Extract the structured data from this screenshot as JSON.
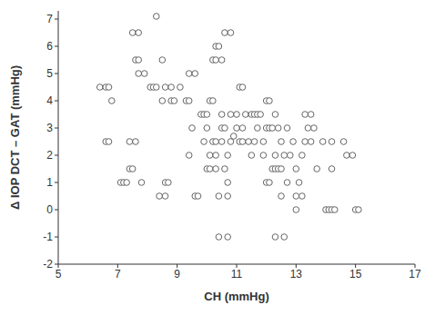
{
  "chart_data": {
    "type": "scatter",
    "x_label": "CH (mmHg)",
    "y_label": "Δ IOP DCT – GAT (mmHg)",
    "xlim": [
      5,
      17
    ],
    "xticks": [
      5,
      7,
      9,
      11,
      13,
      15,
      17
    ],
    "ylim": [
      -2,
      7.3
    ],
    "yticks": [
      -2,
      -1,
      0,
      1,
      2,
      3,
      4,
      5,
      6,
      7
    ],
    "grid": false,
    "marker": "circle",
    "color": "#555555",
    "x": [
      6.4,
      6.6,
      6.7,
      6.6,
      6.7,
      6.8,
      7.1,
      7.2,
      7.3,
      7.4,
      7.4,
      7.5,
      7.5,
      7.6,
      7.6,
      7.7,
      7.7,
      7.7,
      7.8,
      7.9,
      8.1,
      8.2,
      8.3,
      8.3,
      8.4,
      8.5,
      8.5,
      8.6,
      8.6,
      8.6,
      8.7,
      8.8,
      8.8,
      8.9,
      9.1,
      9.3,
      9.4,
      9.4,
      9.4,
      9.5,
      9.6,
      9.6,
      9.7,
      9.8,
      9.9,
      9.9,
      10,
      10,
      10,
      10.1,
      10.1,
      10.1,
      10.2,
      10.2,
      10.2,
      10.3,
      10.3,
      10.3,
      10.3,
      10.3,
      10.4,
      10.4,
      10.4,
      10.5,
      10.5,
      10.5,
      10.5,
      10.6,
      10.6,
      10.6,
      10.7,
      10.7,
      10.7,
      10.7,
      10.8,
      10.8,
      10.8,
      10.9,
      11,
      11,
      11.1,
      11.1,
      11.2,
      11.2,
      11.2,
      11.3,
      11.4,
      11.5,
      11.5,
      11.6,
      11.6,
      11.7,
      11.7,
      11.8,
      11.9,
      11.9,
      12,
      12,
      12,
      12.1,
      12.1,
      12.1,
      12.2,
      12.2,
      12.3,
      12.3,
      12.3,
      12.3,
      12.4,
      12.4,
      12.5,
      12.5,
      12.5,
      12.6,
      12.6,
      12.7,
      12.7,
      12.8,
      12.9,
      13,
      13,
      13,
      13.1,
      13.2,
      13.2,
      13.3,
      13.3,
      13.4,
      13.5,
      13.5,
      13.6,
      13.7,
      13.9,
      14,
      14.1,
      14.2,
      14.2,
      14.2,
      14.3,
      14.6,
      14.7,
      14.9,
      15,
      15.1
    ],
    "values": [
      4.5,
      4.5,
      4.5,
      2.5,
      2.5,
      4,
      1,
      1,
      1,
      2.5,
      1.5,
      1.5,
      6.5,
      2.5,
      5.5,
      6.5,
      5.5,
      5,
      1,
      5,
      4.5,
      4.5,
      7.1,
      4.5,
      0.5,
      5.5,
      4,
      0.5,
      4.5,
      1,
      1,
      4.5,
      4,
      4,
      4.5,
      4,
      4,
      2,
      5,
      3,
      5,
      0.5,
      0.5,
      3.5,
      3.5,
      2.5,
      1.5,
      3,
      3.5,
      2,
      4,
      1.5,
      4,
      5.5,
      2.5,
      5.5,
      6,
      1.5,
      2,
      2.5,
      6,
      0.5,
      -1,
      5.5,
      3.5,
      3,
      2.5,
      1.5,
      3,
      6.5,
      1,
      2,
      0.5,
      -1,
      3.5,
      6.5,
      2.5,
      2.7,
      3,
      3.5,
      2.5,
      4.5,
      4.5,
      3,
      2.5,
      3.5,
      2.5,
      3.5,
      2,
      3.5,
      2.5,
      3.5,
      3,
      3.5,
      2.5,
      2,
      3,
      4,
      1,
      4,
      3,
      1,
      3,
      1.5,
      2,
      1.5,
      3.5,
      -1,
      1.5,
      3,
      2.5,
      1.5,
      0.5,
      2,
      -1,
      3,
      1,
      2,
      2.5,
      0.5,
      1.5,
      0,
      1,
      2,
      0.5,
      2.5,
      3.5,
      3,
      2.5,
      3.5,
      3,
      1.5,
      2.5,
      0,
      0,
      0,
      1.5,
      2.5,
      0,
      2.5,
      2,
      2,
      0,
      0
    ]
  }
}
